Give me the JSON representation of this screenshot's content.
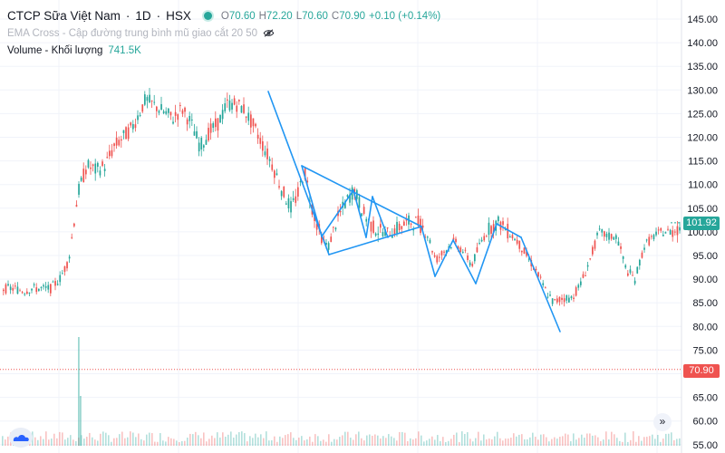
{
  "header": {
    "symbol": "CTCP Sữa Việt Nam",
    "interval": "1D",
    "exchange": "HSX",
    "ohlc": [
      {
        "key": "O",
        "value": "70.60"
      },
      {
        "key": "H",
        "value": "72.20"
      },
      {
        "key": "L",
        "value": "70.60"
      },
      {
        "key": "C",
        "value": "70.90"
      }
    ],
    "change": "+0.10 (+0.14%)",
    "indicator": "EMA Cross - Cập đường trung bình mũ giao cắt 20 50",
    "volume_label": "Volume - Khối lượng",
    "volume_value": "741.5K"
  },
  "price_tags": {
    "last": "101.92",
    "marker": "70.90"
  },
  "icons": {
    "live_dot": "status-dot-icon",
    "hide_indicator": "eye-slash-icon",
    "scroll": "double-chevron-right-icon",
    "logo": "cloud-logo-icon"
  },
  "colors": {
    "up": "#26a69a",
    "down": "#ef5350",
    "trendline": "#2196f3",
    "grid": "#f0f3fa",
    "axis_text": "#131722",
    "last_tag": "#26a69a",
    "marker_tag": "#ef5350"
  },
  "chart_data": {
    "type": "candlestick",
    "y_axis": {
      "ticks": [
        "145.00",
        "140.00",
        "135.00",
        "130.00",
        "125.00",
        "120.00",
        "115.00",
        "110.00",
        "105.00",
        "100.00",
        "95.00",
        "90.00",
        "85.00",
        "80.00",
        "75.00",
        "70.00",
        "65.00",
        "60.00",
        "55.00"
      ],
      "range": [
        54,
        147
      ],
      "side": "right"
    },
    "price_path": [
      [
        0,
        88
      ],
      [
        15,
        88
      ],
      [
        25,
        87.5
      ],
      [
        35,
        88
      ],
      [
        45,
        88
      ],
      [
        55,
        88
      ],
      [
        65,
        90
      ],
      [
        75,
        94
      ],
      [
        85,
        108
      ],
      [
        95,
        114
      ],
      [
        105,
        113
      ],
      [
        115,
        114
      ],
      [
        125,
        118
      ],
      [
        135,
        120
      ],
      [
        145,
        122
      ],
      [
        160,
        128
      ],
      [
        175,
        126
      ],
      [
        190,
        124
      ],
      [
        200,
        126
      ],
      [
        210,
        123
      ],
      [
        220,
        118
      ],
      [
        230,
        121
      ],
      [
        240,
        123
      ],
      [
        250,
        127
      ],
      [
        260,
        127
      ],
      [
        268,
        126
      ],
      [
        280,
        122
      ],
      [
        290,
        118
      ],
      [
        300,
        114
      ],
      [
        310,
        109
      ],
      [
        320,
        105
      ],
      [
        328,
        108
      ],
      [
        335,
        113
      ],
      [
        345,
        104
      ],
      [
        355,
        98
      ],
      [
        362,
        97
      ],
      [
        370,
        102
      ],
      [
        380,
        106
      ],
      [
        390,
        109
      ],
      [
        400,
        104
      ],
      [
        410,
        101
      ],
      [
        420,
        100
      ],
      [
        430,
        100
      ],
      [
        440,
        101
      ],
      [
        450,
        102
      ],
      [
        460,
        102
      ],
      [
        470,
        100
      ],
      [
        480,
        94
      ],
      [
        490,
        96
      ],
      [
        500,
        98
      ],
      [
        510,
        96
      ],
      [
        520,
        93
      ],
      [
        530,
        98
      ],
      [
        540,
        101
      ],
      [
        550,
        102
      ],
      [
        560,
        100
      ],
      [
        570,
        98
      ],
      [
        580,
        95
      ],
      [
        590,
        92
      ],
      [
        600,
        88
      ],
      [
        610,
        85
      ],
      [
        620,
        86
      ],
      [
        630,
        86
      ],
      [
        640,
        89
      ],
      [
        650,
        94
      ],
      [
        660,
        100
      ],
      [
        670,
        99
      ],
      [
        680,
        99
      ],
      [
        690,
        92
      ],
      [
        700,
        90
      ],
      [
        710,
        97
      ],
      [
        720,
        99
      ],
      [
        730,
        100
      ],
      [
        740,
        100
      ],
      [
        750,
        101
      ]
    ],
    "volume": {
      "spike_x": [
        86,
        88
      ],
      "spike_heights": [
        120,
        55
      ],
      "baseline": 492
    },
    "annotations": {
      "trendlines": [
        [
          [
            296,
            101
          ],
          [
            363,
            281
          ]
        ],
        [
          [
            333,
            183
          ],
          [
            465,
            250
          ]
        ],
        [
          [
            363,
            281
          ],
          [
            465,
            250
          ]
        ],
        [
          [
            333,
            183
          ],
          [
            355,
            261
          ]
        ],
        [
          [
            355,
            261
          ],
          [
            390,
            210
          ]
        ],
        [
          [
            390,
            210
          ],
          [
            404,
            262
          ]
        ],
        [
          [
            404,
            262
          ],
          [
            411,
            217
          ]
        ],
        [
          [
            411,
            217
          ],
          [
            428,
            262
          ]
        ],
        [
          [
            465,
            250
          ],
          [
            480,
            305
          ]
        ],
        [
          [
            480,
            305
          ],
          [
            500,
            265
          ]
        ],
        [
          [
            500,
            265
          ],
          [
            525,
            313
          ]
        ],
        [
          [
            525,
            313
          ],
          [
            548,
            247
          ]
        ],
        [
          [
            548,
            247
          ],
          [
            575,
            262
          ]
        ],
        [
          [
            575,
            262
          ],
          [
            618,
            366
          ]
        ]
      ]
    },
    "last_price": 101.92,
    "marker_price": 70.9
  }
}
